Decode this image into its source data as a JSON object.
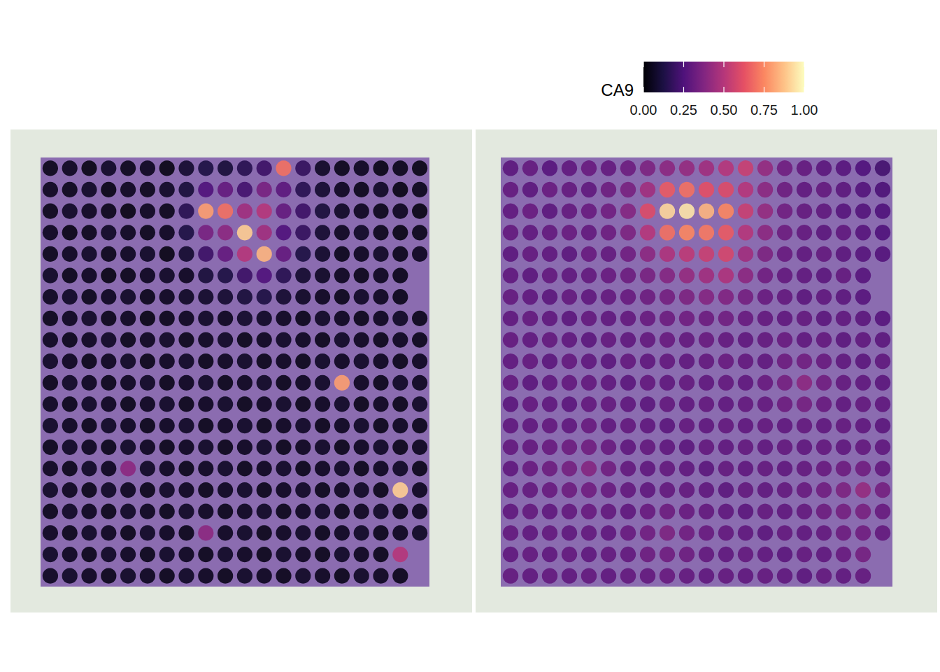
{
  "chart_data": {
    "type": "heatmap",
    "tick_labels": false,
    "colorbar": {
      "title": "CA9",
      "range": [
        0,
        1
      ],
      "ticks": [
        {
          "value": 0,
          "label": "0.00"
        },
        {
          "value": 0.25,
          "label": "0.25"
        },
        {
          "value": 0.5,
          "label": "0.50"
        },
        {
          "value": 0.75,
          "label": "0.75"
        },
        {
          "value": 1,
          "label": "1.00"
        }
      ]
    },
    "panels": [
      {
        "cells": [
          [
            0.04,
            0.05,
            0.03,
            0.06,
            0.04,
            0.05,
            0.03,
            0.08,
            0.12,
            0.1,
            0.15,
            0.2,
            0.7,
            0.18,
            0.06,
            0.04,
            0.05,
            0.03,
            0.04,
            0.03
          ],
          [
            0.05,
            0.04,
            0.06,
            0.03,
            0.05,
            0.04,
            0.06,
            0.1,
            0.25,
            0.3,
            0.22,
            0.35,
            0.28,
            0.15,
            0.08,
            0.05,
            0.04,
            0.06,
            0.03,
            0.04
          ],
          [
            0.04,
            0.06,
            0.05,
            0.04,
            0.03,
            0.05,
            0.04,
            0.15,
            0.8,
            0.7,
            0.45,
            0.5,
            0.3,
            0.2,
            0.1,
            0.06,
            0.05,
            0.04,
            0.05,
            0.03
          ],
          [
            0.05,
            0.03,
            0.04,
            0.06,
            0.05,
            0.04,
            0.05,
            0.12,
            0.35,
            0.4,
            0.9,
            0.45,
            0.25,
            0.18,
            0.08,
            0.05,
            0.06,
            0.04,
            0.03,
            0.04
          ],
          [
            0.04,
            0.05,
            0.06,
            0.04,
            0.05,
            0.06,
            0.03,
            0.08,
            0.2,
            0.3,
            0.5,
            0.85,
            0.3,
            0.12,
            0.07,
            0.04,
            0.05,
            0.06,
            0.04,
            0.05
          ],
          [
            0.06,
            0.04,
            0.05,
            0.03,
            0.04,
            0.05,
            0.06,
            0.05,
            0.1,
            0.12,
            0.2,
            0.25,
            0.15,
            0.08,
            0.06,
            0.05,
            0.04,
            0.05,
            0.04,
            null
          ],
          [
            0.05,
            0.06,
            0.04,
            0.05,
            0.06,
            0.04,
            0.05,
            0.06,
            0.07,
            0.08,
            0.1,
            0.12,
            0.08,
            0.06,
            0.05,
            0.04,
            0.06,
            0.05,
            0.04,
            null
          ],
          [
            0.04,
            0.05,
            0.06,
            0.04,
            0.05,
            0.03,
            0.04,
            0.05,
            0.06,
            0.05,
            0.07,
            0.06,
            0.05,
            0.04,
            0.06,
            0.05,
            0.04,
            0.05,
            0.06,
            0.04
          ],
          [
            0.05,
            0.04,
            0.05,
            0.06,
            0.04,
            0.05,
            0.06,
            0.04,
            0.05,
            0.06,
            0.04,
            0.05,
            0.06,
            0.05,
            0.04,
            0.06,
            0.05,
            0.04,
            0.05,
            0.04
          ],
          [
            0.06,
            0.05,
            0.04,
            0.05,
            0.06,
            0.04,
            0.05,
            0.06,
            0.04,
            0.05,
            0.06,
            0.04,
            0.05,
            0.04,
            0.06,
            0.05,
            0.06,
            0.05,
            0.04,
            0.05
          ],
          [
            0.04,
            0.06,
            0.05,
            0.04,
            0.05,
            0.06,
            0.04,
            0.05,
            0.06,
            0.04,
            0.05,
            0.06,
            0.04,
            0.05,
            0.06,
            0.8,
            0.05,
            0.04,
            0.06,
            0.05
          ],
          [
            0.05,
            0.04,
            0.06,
            0.05,
            0.04,
            0.05,
            0.06,
            0.04,
            0.05,
            0.06,
            0.04,
            0.05,
            0.06,
            0.04,
            0.05,
            0.06,
            0.04,
            0.05,
            0.04,
            0.06
          ],
          [
            0.06,
            0.05,
            0.04,
            0.06,
            0.05,
            0.04,
            0.05,
            0.06,
            0.04,
            0.05,
            0.06,
            0.04,
            0.05,
            0.06,
            0.04,
            0.05,
            0.06,
            0.04,
            0.05,
            0.04
          ],
          [
            0.04,
            0.06,
            0.05,
            0.04,
            0.06,
            0.05,
            0.04,
            0.05,
            0.06,
            0.04,
            0.05,
            0.06,
            0.04,
            0.05,
            0.06,
            0.04,
            0.05,
            0.06,
            0.04,
            0.05
          ],
          [
            0.05,
            0.04,
            0.06,
            0.05,
            0.4,
            0.06,
            0.05,
            0.04,
            0.05,
            0.06,
            0.04,
            0.05,
            0.06,
            0.04,
            0.05,
            0.06,
            0.04,
            0.05,
            0.06,
            0.04
          ],
          [
            0.06,
            0.05,
            0.04,
            0.06,
            0.05,
            0.04,
            0.06,
            0.05,
            0.04,
            0.05,
            0.06,
            0.04,
            0.05,
            0.06,
            0.04,
            0.05,
            0.06,
            0.04,
            0.9,
            0.05
          ],
          [
            0.04,
            0.06,
            0.05,
            0.04,
            0.06,
            0.05,
            0.04,
            0.06,
            0.05,
            0.04,
            0.05,
            0.06,
            0.04,
            0.05,
            0.06,
            0.04,
            0.05,
            0.06,
            0.04,
            0.05
          ],
          [
            0.05,
            0.04,
            0.06,
            0.05,
            0.04,
            0.06,
            0.05,
            0.04,
            0.4,
            0.05,
            0.06,
            0.04,
            0.05,
            0.06,
            0.04,
            0.05,
            0.06,
            0.04,
            0.05,
            0.06
          ],
          [
            0.06,
            0.05,
            0.04,
            0.06,
            0.05,
            0.04,
            0.06,
            0.05,
            0.04,
            0.06,
            0.05,
            0.04,
            0.06,
            0.05,
            0.04,
            0.06,
            0.05,
            0.04,
            0.5,
            null
          ],
          [
            0.05,
            0.06,
            0.05,
            0.04,
            0.06,
            0.05,
            0.04,
            0.06,
            0.05,
            0.04,
            0.06,
            0.05,
            0.04,
            0.06,
            0.05,
            0.04,
            0.06,
            0.05,
            0.04,
            null
          ]
        ]
      },
      {
        "cells": [
          [
            0.28,
            0.3,
            0.27,
            0.29,
            0.31,
            0.3,
            0.32,
            0.36,
            0.4,
            0.42,
            0.45,
            0.5,
            0.55,
            0.42,
            0.33,
            0.3,
            0.28,
            0.27,
            0.25,
            0.22
          ],
          [
            0.3,
            0.28,
            0.31,
            0.3,
            0.29,
            0.32,
            0.35,
            0.45,
            0.65,
            0.7,
            0.62,
            0.6,
            0.5,
            0.4,
            0.32,
            0.29,
            0.3,
            0.28,
            0.26,
            0.24
          ],
          [
            0.29,
            0.31,
            0.28,
            0.3,
            0.31,
            0.33,
            0.38,
            0.6,
            0.92,
            0.95,
            0.85,
            0.75,
            0.55,
            0.42,
            0.33,
            0.3,
            0.29,
            0.27,
            0.26,
            0.25
          ],
          [
            0.3,
            0.29,
            0.3,
            0.31,
            0.3,
            0.32,
            0.36,
            0.5,
            0.7,
            0.75,
            0.72,
            0.65,
            0.5,
            0.4,
            0.32,
            0.3,
            0.28,
            0.29,
            0.27,
            0.25
          ],
          [
            0.28,
            0.3,
            0.29,
            0.28,
            0.31,
            0.3,
            0.33,
            0.4,
            0.48,
            0.52,
            0.55,
            0.58,
            0.45,
            0.36,
            0.31,
            0.29,
            0.3,
            0.28,
            0.27,
            0.26
          ],
          [
            0.29,
            0.28,
            0.3,
            0.29,
            0.3,
            0.31,
            0.32,
            0.35,
            0.38,
            0.42,
            0.45,
            0.48,
            0.4,
            0.33,
            0.3,
            0.29,
            0.28,
            0.3,
            0.27,
            null
          ],
          [
            0.3,
            0.29,
            0.28,
            0.3,
            0.29,
            0.3,
            0.31,
            0.32,
            0.34,
            0.36,
            0.38,
            0.37,
            0.34,
            0.31,
            0.3,
            0.28,
            0.29,
            0.28,
            0.27,
            null
          ],
          [
            0.29,
            0.3,
            0.29,
            0.28,
            0.3,
            0.29,
            0.3,
            0.31,
            0.32,
            0.33,
            0.32,
            0.33,
            0.31,
            0.3,
            0.29,
            0.3,
            0.28,
            0.29,
            0.28,
            0.27
          ],
          [
            0.3,
            0.29,
            0.3,
            0.29,
            0.28,
            0.3,
            0.29,
            0.3,
            0.31,
            0.3,
            0.31,
            0.3,
            0.29,
            0.3,
            0.31,
            0.29,
            0.3,
            0.28,
            0.29,
            0.28
          ],
          [
            0.29,
            0.3,
            0.28,
            0.3,
            0.29,
            0.28,
            0.3,
            0.29,
            0.3,
            0.29,
            0.3,
            0.31,
            0.3,
            0.29,
            0.32,
            0.33,
            0.31,
            0.29,
            0.28,
            0.29
          ],
          [
            0.3,
            0.28,
            0.29,
            0.3,
            0.3,
            0.29,
            0.28,
            0.3,
            0.29,
            0.3,
            0.29,
            0.3,
            0.29,
            0.31,
            0.34,
            0.4,
            0.33,
            0.3,
            0.29,
            0.28
          ],
          [
            0.28,
            0.3,
            0.29,
            0.28,
            0.3,
            0.3,
            0.29,
            0.28,
            0.3,
            0.29,
            0.3,
            0.29,
            0.3,
            0.3,
            0.32,
            0.34,
            0.31,
            0.29,
            0.3,
            0.29
          ],
          [
            0.29,
            0.29,
            0.3,
            0.29,
            0.31,
            0.29,
            0.3,
            0.29,
            0.28,
            0.3,
            0.29,
            0.3,
            0.29,
            0.3,
            0.29,
            0.3,
            0.29,
            0.3,
            0.29,
            0.28
          ],
          [
            0.3,
            0.3,
            0.31,
            0.32,
            0.33,
            0.31,
            0.29,
            0.3,
            0.29,
            0.28,
            0.3,
            0.29,
            0.3,
            0.29,
            0.3,
            0.29,
            0.3,
            0.29,
            0.3,
            0.29
          ],
          [
            0.29,
            0.31,
            0.32,
            0.34,
            0.38,
            0.33,
            0.3,
            0.29,
            0.3,
            0.29,
            0.28,
            0.3,
            0.29,
            0.3,
            0.29,
            0.3,
            0.31,
            0.32,
            0.33,
            0.3
          ],
          [
            0.3,
            0.3,
            0.31,
            0.32,
            0.33,
            0.31,
            0.3,
            0.29,
            0.3,
            0.3,
            0.29,
            0.28,
            0.3,
            0.29,
            0.3,
            0.31,
            0.33,
            0.36,
            0.42,
            0.34
          ],
          [
            0.29,
            0.3,
            0.29,
            0.3,
            0.31,
            0.3,
            0.29,
            0.31,
            0.32,
            0.31,
            0.3,
            0.29,
            0.28,
            0.3,
            0.29,
            0.3,
            0.32,
            0.34,
            0.35,
            0.31
          ],
          [
            0.3,
            0.29,
            0.3,
            0.29,
            0.3,
            0.29,
            0.31,
            0.33,
            0.36,
            0.33,
            0.31,
            0.3,
            0.29,
            0.28,
            0.3,
            0.29,
            0.3,
            0.32,
            0.33,
            0.3
          ],
          [
            0.29,
            0.3,
            0.29,
            0.3,
            0.29,
            0.3,
            0.3,
            0.32,
            0.33,
            0.32,
            0.3,
            0.29,
            0.3,
            0.29,
            0.28,
            0.3,
            0.29,
            0.31,
            0.34,
            null
          ],
          [
            0.3,
            0.29,
            0.3,
            0.29,
            0.3,
            0.29,
            0.3,
            0.3,
            0.31,
            0.3,
            0.29,
            0.3,
            0.29,
            0.3,
            0.29,
            0.28,
            0.3,
            0.29,
            0.3,
            null
          ]
        ]
      }
    ]
  }
}
